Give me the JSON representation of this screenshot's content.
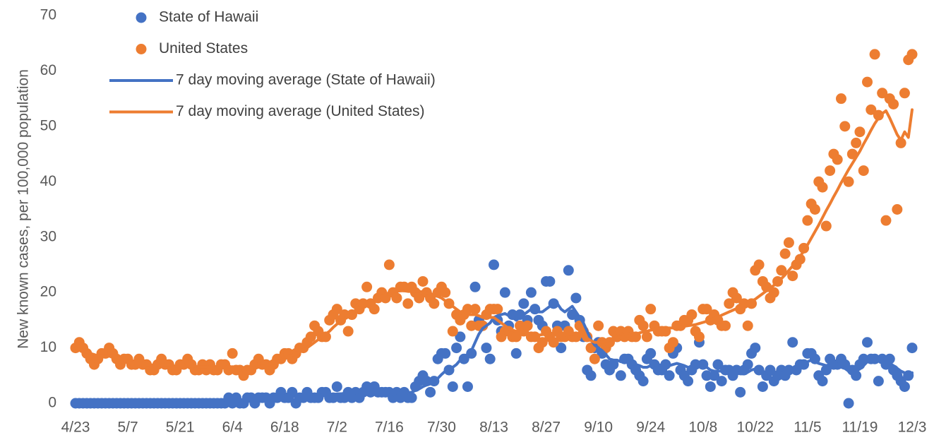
{
  "chart_data": {
    "type": "line",
    "y_label": "New known cases, per 100,000 population",
    "categories": [
      "4/23",
      null,
      null,
      null,
      null,
      null,
      null,
      null,
      null,
      null,
      null,
      null,
      null,
      null,
      "5/7",
      null,
      null,
      null,
      null,
      null,
      null,
      null,
      null,
      null,
      null,
      null,
      null,
      null,
      "5/21",
      null,
      null,
      null,
      null,
      null,
      null,
      null,
      null,
      null,
      null,
      null,
      null,
      null,
      "6/4",
      null,
      null,
      null,
      null,
      null,
      null,
      null,
      null,
      null,
      null,
      null,
      null,
      null,
      "6/18",
      null,
      null,
      null,
      null,
      null,
      null,
      null,
      null,
      null,
      null,
      null,
      null,
      null,
      "7/2",
      null,
      null,
      null,
      null,
      null,
      null,
      null,
      null,
      null,
      null,
      null,
      null,
      null,
      "7/16",
      null,
      null,
      null,
      null,
      null,
      null,
      null,
      null,
      null,
      null,
      null,
      null,
      null,
      "7/30",
      null,
      null,
      null,
      null,
      null,
      null,
      null,
      null,
      null,
      null,
      null,
      null,
      null,
      "8/13",
      null,
      null,
      null,
      null,
      null,
      null,
      null,
      null,
      null,
      null,
      null,
      null,
      null,
      "8/27",
      null,
      null,
      null,
      null,
      null,
      null,
      null,
      null,
      null,
      null,
      null,
      null,
      null,
      "9/10",
      null,
      null,
      null,
      null,
      null,
      null,
      null,
      null,
      null,
      null,
      null,
      null,
      null,
      "9/24",
      null,
      null,
      null,
      null,
      null,
      null,
      null,
      null,
      null,
      null,
      null,
      null,
      null,
      "10/8",
      null,
      null,
      null,
      null,
      null,
      null,
      null,
      null,
      null,
      null,
      null,
      null,
      null,
      "10/22",
      null,
      null,
      null,
      null,
      null,
      null,
      null,
      null,
      null,
      null,
      null,
      null,
      null,
      "11/5",
      null,
      null,
      null,
      null,
      null,
      null,
      null,
      null,
      null,
      null,
      null,
      null,
      null,
      "11/19",
      null,
      null,
      null,
      null,
      null,
      null,
      null,
      null,
      null,
      null,
      null,
      null,
      null,
      "12/3"
    ],
    "ylim": [
      0,
      70
    ],
    "yticks": [
      0,
      10,
      20,
      30,
      40,
      50,
      60,
      70
    ],
    "grid": false,
    "legend": "top-left",
    "series": [
      {
        "name": "State of Hawaii",
        "type": "scatter",
        "color": "#4472c4",
        "values": [
          0,
          0,
          0,
          0,
          0,
          0,
          0,
          0,
          0,
          0,
          0,
          0,
          0,
          0,
          0,
          0,
          0,
          0,
          0,
          0,
          0,
          0,
          0,
          0,
          0,
          0,
          0,
          0,
          0,
          0,
          0,
          0,
          0,
          0,
          0,
          0,
          0,
          0,
          0,
          0,
          0,
          1,
          0,
          1,
          0,
          0,
          1,
          1,
          0,
          1,
          1,
          1,
          0,
          1,
          1,
          2,
          1,
          1,
          2,
          0,
          1,
          1,
          2,
          1,
          1,
          1,
          2,
          2,
          1,
          1,
          3,
          1,
          1,
          2,
          1,
          2,
          1,
          2,
          3,
          2,
          3,
          2,
          2,
          2,
          2,
          1,
          2,
          1,
          2,
          1,
          1,
          3,
          4,
          5,
          4,
          2,
          4,
          8,
          9,
          9,
          6,
          3,
          10,
          12,
          8,
          3,
          9,
          21,
          15,
          14,
          10,
          8,
          25,
          15,
          13,
          20,
          14,
          16,
          9,
          16,
          18,
          15,
          20,
          17,
          15,
          14,
          22,
          22,
          18,
          14,
          10,
          14,
          24,
          16,
          19,
          15,
          12,
          6,
          5,
          10,
          11,
          9,
          7,
          6,
          7,
          12,
          5,
          8,
          8,
          7,
          6,
          5,
          4,
          8,
          9,
          7,
          6,
          6,
          7,
          5,
          9,
          10,
          6,
          5,
          4,
          6,
          7,
          11,
          7,
          5,
          3,
          5,
          7,
          4,
          6,
          6,
          5,
          6,
          2,
          6,
          7,
          9,
          10,
          6,
          3,
          5,
          6,
          4,
          5,
          6,
          5,
          6,
          11,
          6,
          7,
          7,
          9,
          9,
          8,
          5,
          4,
          6,
          8,
          7,
          7,
          8,
          7,
          0,
          6,
          5,
          7,
          8,
          11,
          8,
          8,
          4,
          8,
          7,
          8,
          6,
          5,
          4,
          3,
          5,
          10
        ]
      },
      {
        "name": "United States",
        "type": "scatter",
        "color": "#ed7d31",
        "values": [
          10,
          11,
          10,
          9,
          8,
          7,
          8,
          9,
          9,
          10,
          9,
          8,
          7,
          8,
          8,
          7,
          7,
          8,
          7,
          7,
          6,
          6,
          7,
          8,
          7,
          7,
          6,
          6,
          7,
          7,
          8,
          7,
          6,
          6,
          7,
          6,
          7,
          6,
          6,
          7,
          7,
          6,
          9,
          6,
          6,
          5,
          6,
          6,
          7,
          8,
          7,
          7,
          6,
          7,
          8,
          8,
          9,
          9,
          8,
          9,
          10,
          10,
          11,
          12,
          14,
          13,
          12,
          12,
          15,
          16,
          17,
          15,
          16,
          13,
          16,
          18,
          17,
          18,
          21,
          18,
          17,
          19,
          20,
          19,
          25,
          20,
          19,
          21,
          21,
          18,
          21,
          20,
          19,
          22,
          20,
          19,
          18,
          20,
          21,
          20,
          18,
          13,
          16,
          15,
          16,
          17,
          14,
          17,
          14,
          14,
          16,
          17,
          17,
          17,
          12,
          13,
          13,
          12,
          12,
          14,
          13,
          14,
          12,
          12,
          10,
          11,
          13,
          12,
          11,
          13,
          12,
          12,
          13,
          12,
          12,
          14,
          13,
          12,
          10,
          8,
          14,
          11,
          10,
          11,
          13,
          12,
          13,
          12,
          13,
          12,
          12,
          15,
          14,
          12,
          17,
          14,
          13,
          13,
          13,
          10,
          11,
          14,
          14,
          15,
          15,
          16,
          13,
          12,
          17,
          17,
          15,
          16,
          15,
          14,
          14,
          18,
          20,
          19,
          17,
          18,
          14,
          18,
          24,
          25,
          22,
          21,
          19,
          20,
          22,
          24,
          27,
          29,
          23,
          25,
          26,
          28,
          33,
          36,
          35,
          40,
          39,
          32,
          42,
          45,
          44,
          55,
          50,
          40,
          45,
          47,
          49,
          42,
          58,
          53,
          63,
          52,
          56,
          33,
          55,
          54,
          35,
          47,
          56,
          62,
          63
        ]
      },
      {
        "name": "7 day moving average (State of Hawaii)",
        "type": "line",
        "color": "#4472c4",
        "values": [
          0,
          0,
          0,
          0,
          0,
          0,
          0,
          0,
          0,
          0,
          0,
          0,
          0,
          0,
          0,
          0,
          0,
          0,
          0,
          0,
          0,
          0,
          0,
          0,
          0,
          0,
          0,
          0,
          0,
          0,
          0,
          0,
          0,
          0,
          0,
          0,
          0,
          0,
          0,
          0,
          0,
          0.3,
          0.4,
          0.5,
          0.5,
          0.6,
          0.6,
          0.7,
          0.7,
          0.7,
          0.8,
          0.8,
          0.9,
          1,
          1,
          1.1,
          1.1,
          1.1,
          1.2,
          1.2,
          1.2,
          1.3,
          1.3,
          1.3,
          1.4,
          1.4,
          1.5,
          1.5,
          1.6,
          1.6,
          1.7,
          1.7,
          1.8,
          1.8,
          1.9,
          1.9,
          2,
          2,
          2,
          2.1,
          2.1,
          2.1,
          2,
          2,
          2,
          1.9,
          1.9,
          1.8,
          1.8,
          1.9,
          2,
          2.3,
          2.6,
          3,
          3.3,
          3.5,
          3.9,
          4.5,
          5.2,
          5.8,
          6.2,
          6.5,
          7,
          7.8,
          8.5,
          8.8,
          9.5,
          11,
          12.5,
          13.5,
          14,
          14.5,
          15.5,
          15.8,
          16,
          16.2,
          15.8,
          15.5,
          15,
          15.5,
          16,
          16.5,
          17,
          17,
          16.5,
          16.5,
          17,
          17.5,
          17.8,
          18,
          17,
          16.5,
          17,
          17.5,
          16.5,
          15.5,
          14.5,
          13,
          11.5,
          10.5,
          10,
          9.5,
          8.8,
          8,
          7.8,
          7.8,
          7.5,
          7.5,
          7.3,
          7.2,
          7,
          6.8,
          6.5,
          6.5,
          6.8,
          7,
          7,
          6.8,
          6.8,
          6.8,
          7,
          7.2,
          7,
          6.8,
          6.5,
          6.5,
          6.8,
          7,
          6.8,
          6.5,
          6,
          5.8,
          5.8,
          5.8,
          5.8,
          5.7,
          5.6,
          5.5,
          5.3,
          5.3,
          5.6,
          6,
          6.2,
          6,
          5.8,
          5.5,
          5.3,
          5.2,
          5.3,
          5.5,
          5.5,
          5.7,
          6.2,
          6.5,
          6.7,
          7,
          7.5,
          7.8,
          7.5,
          7.2,
          7,
          6.8,
          7,
          7,
          6.8,
          6.5,
          6.3,
          5.8,
          5.5,
          5.8,
          6.2,
          6.8,
          7.5,
          7.8,
          8,
          7.8,
          7.5,
          7.3,
          7.2,
          6.8,
          6.3,
          5.8,
          5.5,
          5.3,
          5.5
        ]
      },
      {
        "name": "7 day moving average (United States)",
        "type": "line",
        "color": "#ed7d31",
        "values": [
          10,
          9.8,
          9.5,
          9.2,
          9,
          8.8,
          8.5,
          8.5,
          8.5,
          8.5,
          8.5,
          8.3,
          8,
          7.8,
          7.5,
          7.3,
          7.2,
          7.2,
          7.2,
          7,
          7,
          6.8,
          6.8,
          7,
          7,
          7,
          6.8,
          6.7,
          6.7,
          6.7,
          6.8,
          6.8,
          6.7,
          6.6,
          6.6,
          6.6,
          6.5,
          6.4,
          6.4,
          6.5,
          6.5,
          6.5,
          6.6,
          6.5,
          6.4,
          6.3,
          6.2,
          6.3,
          6.4,
          6.5,
          6.7,
          6.8,
          7,
          7.2,
          7.4,
          7.7,
          8,
          8.4,
          8.7,
          9,
          9.3,
          9.7,
          10,
          10.5,
          11,
          11.5,
          12,
          12.5,
          13,
          13.7,
          14.3,
          14.8,
          15.2,
          15.7,
          16.2,
          16.7,
          17.2,
          17.5,
          18,
          18.3,
          18.6,
          19,
          19.3,
          19.6,
          20,
          20.2,
          20.2,
          20.3,
          20.3,
          20.2,
          20.2,
          20.2,
          20.2,
          20.1,
          20,
          19.8,
          19.6,
          19.3,
          19,
          18.5,
          18,
          17.5,
          17,
          16.5,
          16,
          16,
          16,
          16,
          15.8,
          15.5,
          15.5,
          15.5,
          15.5,
          15,
          14.5,
          14,
          13.5,
          13.2,
          13,
          13,
          12.8,
          12.7,
          12.5,
          12.3,
          12.3,
          12.4,
          12.5,
          12.5,
          12.3,
          12.3,
          12.3,
          12.3,
          12.4,
          12.4,
          12.4,
          12.2,
          12,
          11.7,
          11.3,
          11,
          11,
          11,
          11.2,
          11.4,
          11.6,
          11.8,
          12,
          12.1,
          12.2,
          12.3,
          12.5,
          12.7,
          12.9,
          13,
          13.2,
          13.3,
          13.4,
          13.5,
          13.6,
          13.6,
          13.6,
          13.7,
          13.8,
          13.9,
          14,
          14.1,
          14.2,
          14.4,
          14.6,
          14.8,
          15,
          15.3,
          15.6,
          15.9,
          16.2,
          16.5,
          16.8,
          17.1,
          17.4,
          17.7,
          18,
          18.4,
          18.8,
          19.3,
          19.8,
          20.3,
          20.8,
          21.3,
          21.9,
          22.5,
          23.2,
          24,
          24.8,
          25.6,
          26.5,
          27.5,
          28.6,
          29.8,
          31,
          32.2,
          33.5,
          34.8,
          36,
          37.3,
          38.5,
          39.8,
          41,
          42.2,
          43.3,
          44.4,
          45.5,
          46.8,
          48,
          49.3,
          50.5,
          51.5,
          52.3,
          52.8,
          51.5,
          50,
          48.5,
          47.5,
          49,
          48,
          53
        ]
      }
    ]
  }
}
